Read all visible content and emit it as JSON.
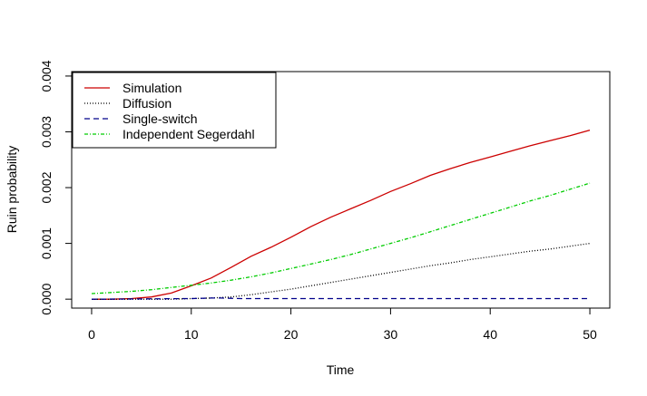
{
  "chart_data": {
    "type": "line",
    "title": "",
    "xlabel": "Time",
    "ylabel": "Ruin probability",
    "xlim": [
      -2,
      52
    ],
    "ylim": [
      -0.00016,
      0.00408
    ],
    "xticks": [
      0,
      10,
      20,
      30,
      40,
      50
    ],
    "xtick_labels": [
      "0",
      "10",
      "20",
      "30",
      "40",
      "50"
    ],
    "yticks": [
      0,
      0.001,
      0.002,
      0.003,
      0.004
    ],
    "ytick_labels": [
      "0.000",
      "0.001",
      "0.002",
      "0.003",
      "0.004"
    ],
    "grid": false,
    "legend_position": "top-left",
    "series": [
      {
        "name": "Simulation",
        "color": "#cc0000",
        "dash": "solid",
        "x": [
          0,
          2,
          4,
          6,
          8,
          10,
          12,
          14,
          16,
          18,
          20,
          22,
          24,
          26,
          28,
          30,
          32,
          34,
          36,
          38,
          40,
          42,
          44,
          46,
          48,
          50
        ],
        "y": [
          0,
          0,
          1e-05,
          4e-05,
          0.00011,
          0.00024,
          0.00038,
          0.00057,
          0.00077,
          0.00093,
          0.00111,
          0.0013,
          0.00147,
          0.00162,
          0.00177,
          0.00193,
          0.00207,
          0.00222,
          0.00234,
          0.00245,
          0.00255,
          0.00265,
          0.00275,
          0.00284,
          0.00293,
          0.00303
        ]
      },
      {
        "name": "Diffusion",
        "color": "#000000",
        "dash": "dotted",
        "x": [
          0,
          2,
          4,
          6,
          8,
          10,
          12,
          14,
          16,
          18,
          20,
          22,
          24,
          26,
          28,
          30,
          32,
          34,
          36,
          38,
          40,
          42,
          44,
          46,
          48,
          50
        ],
        "y": [
          0,
          0,
          0,
          0,
          0,
          1e-05,
          2e-05,
          4e-05,
          8e-05,
          0.00013,
          0.00018,
          0.00024,
          0.0003,
          0.00036,
          0.00042,
          0.00048,
          0.00054,
          0.0006,
          0.00065,
          0.00071,
          0.00076,
          0.00081,
          0.00086,
          0.0009,
          0.00095,
          0.001
        ]
      },
      {
        "name": "Single-switch",
        "color": "#00008b",
        "dash": "dashed",
        "x": [
          0,
          10,
          12,
          13,
          15,
          20,
          30,
          40,
          50
        ],
        "y": [
          0,
          1e-05,
          2e-05,
          2e-05,
          1e-05,
          1e-05,
          1e-05,
          1e-05,
          1e-05
        ]
      },
      {
        "name": "Independent Segerdahl",
        "color": "#00cc00",
        "dash": "dashdot",
        "x": [
          0,
          2,
          4,
          6,
          8,
          10,
          12,
          14,
          16,
          18,
          20,
          22,
          24,
          26,
          28,
          30,
          32,
          34,
          36,
          38,
          40,
          42,
          44,
          46,
          48,
          50
        ],
        "y": [
          0.0001,
          0.00012,
          0.00014,
          0.00017,
          0.00021,
          0.00025,
          0.00029,
          0.00034,
          0.0004,
          0.00047,
          0.00055,
          0.00063,
          0.00071,
          0.0008,
          0.0009,
          0.001,
          0.0011,
          0.00121,
          0.00132,
          0.00143,
          0.00154,
          0.00165,
          0.00176,
          0.00186,
          0.00197,
          0.00208
        ]
      }
    ]
  }
}
